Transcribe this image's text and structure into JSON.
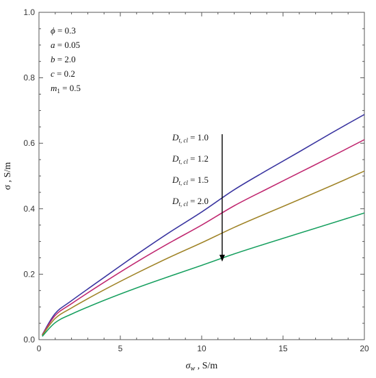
{
  "chart_data": {
    "type": "line",
    "xlabel": "σ_w , S/m",
    "xlabel_main": "σ",
    "xlabel_sub": "w",
    "xlabel_unit": " ,  S/m",
    "ylabel": "σ , S/m",
    "xlim": [
      0,
      20
    ],
    "ylim": [
      0,
      1.0
    ],
    "xticks": [
      0,
      5,
      10,
      15,
      20
    ],
    "xtick_labels": [
      "0",
      "5",
      "10",
      "15",
      "20"
    ],
    "yticks": [
      0.0,
      0.2,
      0.4,
      0.6,
      0.8,
      1.0
    ],
    "ytick_labels": [
      "0.0",
      "0.2",
      "0.4",
      "0.6",
      "0.8",
      "1.0"
    ],
    "grid": false,
    "parameters": [
      {
        "sym": "ϕ",
        "sub": "",
        "value": " = 0.3"
      },
      {
        "sym": "a",
        "sub": "",
        "value": " = 0.05"
      },
      {
        "sym": "b",
        "sub": "",
        "value": " = 2.0"
      },
      {
        "sym": "c",
        "sub": "",
        "value": " = 0.2"
      },
      {
        "sym": "m",
        "sub": "1",
        "value": " = 0.5"
      }
    ],
    "legend_symbol": "D",
    "legend_sub": "t, cl",
    "legend_placement": "center",
    "annotation": "arrow indicating increasing D_t,cl from 1.0 to 2.0",
    "series": [
      {
        "name": "D_t,cl = 1.0",
        "label_value": " = 1.0",
        "color": "#3a35a0",
        "x": [
          0.2,
          1,
          2,
          4,
          6,
          8,
          10,
          12,
          14,
          16,
          18,
          20
        ],
        "y": [
          0.015,
          0.08,
          0.119,
          0.19,
          0.26,
          0.327,
          0.39,
          0.458,
          0.517,
          0.574,
          0.632,
          0.688
        ]
      },
      {
        "name": "D_t,cl = 1.2",
        "label_value": " = 1.2",
        "color": "#c02870",
        "x": [
          0.2,
          1,
          2,
          4,
          6,
          8,
          10,
          12,
          14,
          16,
          18,
          20
        ],
        "y": [
          0.014,
          0.074,
          0.11,
          0.175,
          0.237,
          0.295,
          0.35,
          0.409,
          0.46,
          0.51,
          0.56,
          0.611
        ]
      },
      {
        "name": "D_t,cl = 1.5",
        "label_value": " = 1.5",
        "color": "#a08428",
        "x": [
          0.2,
          1,
          2,
          4,
          6,
          8,
          10,
          12,
          14,
          16,
          18,
          20
        ],
        "y": [
          0.013,
          0.065,
          0.097,
          0.152,
          0.203,
          0.251,
          0.296,
          0.343,
          0.386,
          0.428,
          0.471,
          0.515
        ]
      },
      {
        "name": "D_t,cl = 2.0",
        "label_value": " = 2.0",
        "color": "#18a060",
        "x": [
          0.2,
          1,
          2,
          4,
          6,
          8,
          10,
          12,
          14,
          16,
          18,
          20
        ],
        "y": [
          0.01,
          0.052,
          0.078,
          0.12,
          0.158,
          0.193,
          0.227,
          0.262,
          0.294,
          0.325,
          0.356,
          0.387
        ]
      }
    ]
  }
}
